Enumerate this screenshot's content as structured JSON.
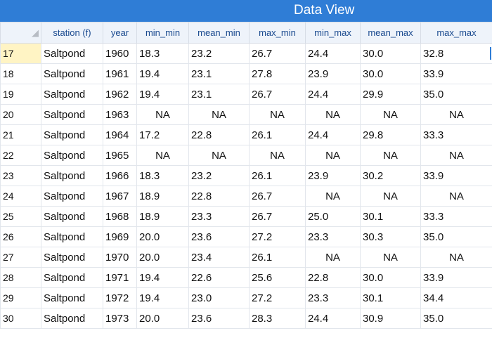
{
  "window": {
    "title": "Data View"
  },
  "columns": [
    "station (f)",
    "year",
    "min_min",
    "mean_min",
    "max_min",
    "min_max",
    "mean_max",
    "max_max"
  ],
  "rows": [
    {
      "num": "17",
      "cells": [
        "Saltpond",
        "1960",
        "18.3",
        "23.2",
        "26.7",
        "24.4",
        "30.0",
        "32.8"
      ]
    },
    {
      "num": "18",
      "cells": [
        "Saltpond",
        "1961",
        "19.4",
        "23.1",
        "27.8",
        "23.9",
        "30.0",
        "33.9"
      ]
    },
    {
      "num": "19",
      "cells": [
        "Saltpond",
        "1962",
        "19.4",
        "23.1",
        "26.7",
        "24.4",
        "29.9",
        "35.0"
      ]
    },
    {
      "num": "20",
      "cells": [
        "Saltpond",
        "1963",
        "NA",
        "NA",
        "NA",
        "NA",
        "NA",
        "NA"
      ]
    },
    {
      "num": "21",
      "cells": [
        "Saltpond",
        "1964",
        "17.2",
        "22.8",
        "26.1",
        "24.4",
        "29.8",
        "33.3"
      ]
    },
    {
      "num": "22",
      "cells": [
        "Saltpond",
        "1965",
        "NA",
        "NA",
        "NA",
        "NA",
        "NA",
        "NA"
      ]
    },
    {
      "num": "23",
      "cells": [
        "Saltpond",
        "1966",
        "18.3",
        "23.2",
        "26.1",
        "23.9",
        "30.2",
        "33.9"
      ]
    },
    {
      "num": "24",
      "cells": [
        "Saltpond",
        "1967",
        "18.9",
        "22.8",
        "26.7",
        "NA",
        "NA",
        "NA"
      ]
    },
    {
      "num": "25",
      "cells": [
        "Saltpond",
        "1968",
        "18.9",
        "23.3",
        "26.7",
        "25.0",
        "30.1",
        "33.3"
      ]
    },
    {
      "num": "26",
      "cells": [
        "Saltpond",
        "1969",
        "20.0",
        "23.6",
        "27.2",
        "23.3",
        "30.3",
        "35.0"
      ]
    },
    {
      "num": "27",
      "cells": [
        "Saltpond",
        "1970",
        "20.0",
        "23.4",
        "26.1",
        "NA",
        "NA",
        "NA"
      ]
    },
    {
      "num": "28",
      "cells": [
        "Saltpond",
        "1971",
        "19.4",
        "22.6",
        "25.6",
        "22.8",
        "30.0",
        "33.9"
      ]
    },
    {
      "num": "29",
      "cells": [
        "Saltpond",
        "1972",
        "19.4",
        "23.0",
        "27.2",
        "23.3",
        "30.1",
        "34.4"
      ]
    },
    {
      "num": "30",
      "cells": [
        "Saltpond",
        "1973",
        "20.0",
        "23.6",
        "28.3",
        "24.4",
        "30.9",
        "35.0"
      ]
    }
  ],
  "selection": {
    "active_row": "17"
  },
  "colors": {
    "title_bar": "#2f7dd6",
    "row_number": "#dd2222",
    "header_text": "#1a4a8f",
    "active_row_bg": "#fff4c4"
  }
}
